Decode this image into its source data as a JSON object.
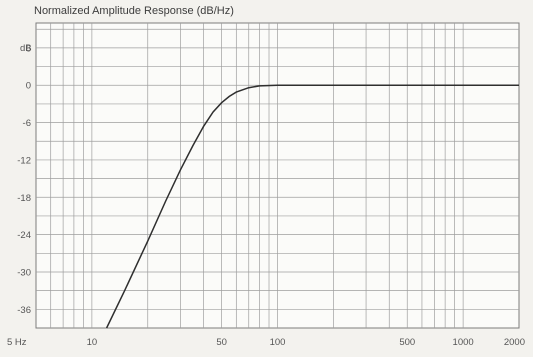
{
  "chart_data": {
    "type": "line",
    "title": "Normalized Amplitude Response (dB/Hz)",
    "x_scale": "log",
    "xlim": [
      5,
      2000
    ],
    "ylim": [
      -39,
      10
    ],
    "y_unit_label": "dB",
    "x_ticks": [
      {
        "value": 5,
        "label": "5 Hz"
      },
      {
        "value": 10,
        "label": "10"
      },
      {
        "value": 50,
        "label": "50"
      },
      {
        "value": 100,
        "label": "100"
      },
      {
        "value": 500,
        "label": "500"
      },
      {
        "value": 1000,
        "label": "1000"
      },
      {
        "value": 2000,
        "label": "2000"
      }
    ],
    "y_ticks": [
      {
        "value": 6,
        "label": "6"
      },
      {
        "value": 0,
        "label": "0"
      },
      {
        "value": -6,
        "label": "-6"
      },
      {
        "value": -12,
        "label": "-12"
      },
      {
        "value": -18,
        "label": "-18"
      },
      {
        "value": -24,
        "label": "-24"
      },
      {
        "value": -30,
        "label": "-30"
      },
      {
        "value": -36,
        "label": "-36"
      }
    ],
    "grid": true,
    "series": [
      {
        "x": [
          12,
          15,
          20,
          25,
          30,
          35,
          40,
          45,
          50,
          55,
          60,
          70,
          80,
          100,
          150,
          200,
          300,
          500,
          1000,
          2000
        ],
        "y": [
          -39,
          -33,
          -25,
          -18.6,
          -13.6,
          -9.7,
          -6.6,
          -4.3,
          -2.8,
          -1.8,
          -1.1,
          -0.4,
          -0.1,
          0,
          0,
          0,
          0,
          0,
          0,
          0
        ]
      }
    ]
  },
  "colors": {
    "background": "#f3f2ee",
    "plot_background": "#fbfbf9",
    "grid": "#9e9e9e",
    "curve": "#2f2f2f"
  }
}
